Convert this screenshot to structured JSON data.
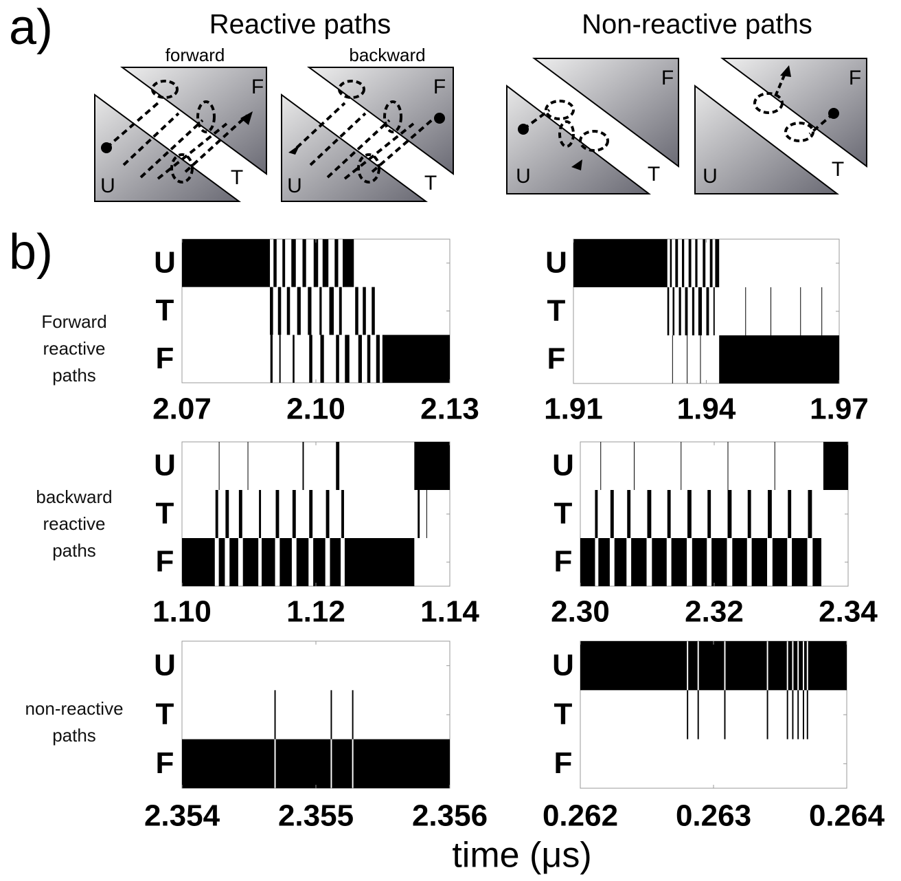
{
  "figure": {
    "panel_a": "a)",
    "panel_b": "b)",
    "title_reactive": "Reactive paths",
    "title_nonreactive": "Non-reactive paths",
    "diagrams": [
      {
        "caption": "forward",
        "labels": [
          "U",
          "T",
          "F"
        ]
      },
      {
        "caption": "backward",
        "labels": [
          "U",
          "T",
          "F"
        ]
      },
      {
        "labels": [
          "U",
          "T",
          "F"
        ]
      },
      {
        "labels": [
          "U",
          "T",
          "F"
        ]
      }
    ],
    "row_labels": [
      "Forward reactive paths",
      "backward reactive paths",
      "non-reactive paths"
    ],
    "xlabel": "time (μs)"
  },
  "chart_data": [
    {
      "type": "state-trajectory",
      "states": [
        "U",
        "T",
        "F"
      ],
      "color": "#000000",
      "xlim": [
        2.07,
        2.13
      ],
      "xticks": [
        2.07,
        {
          "value": 2.1,
          "label": "2.10"
        },
        2.13
      ],
      "occupancy": [
        [
          [
            2.07,
            2.0897
          ],
          [
            2.0905,
            2.0912
          ],
          [
            2.0925,
            2.0931
          ],
          [
            2.0945,
            2.0955
          ],
          [
            2.097,
            2.0978
          ],
          [
            2.0995,
            2.1005
          ],
          [
            2.1015,
            2.1028
          ],
          [
            2.1042,
            2.105
          ],
          [
            2.106,
            2.1085
          ]
        ],
        [
          [
            2.0897,
            2.0904
          ],
          [
            2.0915,
            2.0922
          ],
          [
            2.0935,
            2.0942
          ],
          [
            2.0958,
            2.0966
          ],
          [
            2.0982,
            2.099
          ],
          [
            2.1008,
            2.1013
          ],
          [
            2.103,
            2.104
          ],
          [
            2.1052,
            2.1058
          ],
          [
            2.1088,
            2.1095
          ],
          [
            2.1105,
            2.1112
          ],
          [
            2.1125,
            2.1132
          ]
        ],
        [
          [
            2.0898,
            2.0903
          ],
          [
            2.0918,
            2.0921
          ],
          [
            2.0948,
            2.0952
          ],
          [
            2.0985,
            2.0992
          ],
          [
            2.101,
            2.1018
          ],
          [
            2.1045,
            2.1052
          ],
          [
            2.1065,
            2.1075
          ],
          [
            2.1095,
            2.1103
          ],
          [
            2.1115,
            2.1122
          ],
          [
            2.1135,
            2.1143
          ],
          [
            2.1149,
            2.13
          ]
        ]
      ]
    },
    {
      "type": "state-trajectory",
      "states": [
        "U",
        "T",
        "F"
      ],
      "color": "#000000",
      "xlim": [
        1.91,
        1.97
      ],
      "xticks": [
        1.91,
        1.94,
        1.97
      ],
      "occupancy": [
        [
          [
            1.91,
            1.9312
          ],
          [
            1.9318,
            1.9322
          ],
          [
            1.933,
            1.9336
          ],
          [
            1.9345,
            1.935
          ],
          [
            1.936,
            1.9366
          ],
          [
            1.9375,
            1.938
          ],
          [
            1.9392,
            1.9398
          ],
          [
            1.9408,
            1.9414
          ],
          [
            1.942,
            1.9429
          ]
        ],
        [
          [
            1.9312,
            1.9316
          ],
          [
            1.9324,
            1.9328
          ],
          [
            1.9338,
            1.9343
          ],
          [
            1.9352,
            1.9358
          ],
          [
            1.9368,
            1.9373
          ],
          [
            1.9382,
            1.939
          ],
          [
            1.94,
            1.9406
          ],
          [
            1.9416,
            1.9419
          ],
          [
            1.9488,
            1.9489
          ],
          [
            1.9545,
            1.9546
          ],
          [
            1.9612,
            1.9613
          ],
          [
            1.966,
            1.9661
          ]
        ],
        [
          [
            1.9323,
            1.9324
          ],
          [
            1.9356,
            1.9357
          ],
          [
            1.9386,
            1.9387
          ],
          [
            1.9429,
            1.97
          ]
        ]
      ]
    },
    {
      "type": "state-trajectory",
      "states": [
        "U",
        "T",
        "F"
      ],
      "color": "#000000",
      "xlim": [
        1.1,
        1.14
      ],
      "xticks": [
        {
          "value": 1.1,
          "label": "1.10"
        },
        1.12,
        1.14
      ],
      "occupancy": [
        [
          [
            1.1055,
            1.1056
          ],
          [
            1.1098,
            1.1099
          ],
          [
            1.118,
            1.1182
          ],
          [
            1.123,
            1.1235
          ],
          [
            1.1347,
            1.14
          ]
        ],
        [
          [
            1.105,
            1.1054
          ],
          [
            1.1065,
            1.107
          ],
          [
            1.1085,
            1.109
          ],
          [
            1.1115,
            1.1118
          ],
          [
            1.114,
            1.1145
          ],
          [
            1.1165,
            1.117
          ],
          [
            1.119,
            1.1195
          ],
          [
            1.1215,
            1.122
          ],
          [
            1.1238,
            1.1242
          ],
          [
            1.1352,
            1.1355
          ],
          [
            1.1365,
            1.1366
          ]
        ],
        [
          [
            1.1,
            1.1049
          ],
          [
            1.1055,
            1.1064
          ],
          [
            1.1071,
            1.1084
          ],
          [
            1.1091,
            1.1114
          ],
          [
            1.1119,
            1.1139
          ],
          [
            1.1146,
            1.1164
          ],
          [
            1.1171,
            1.1189
          ],
          [
            1.1196,
            1.1214
          ],
          [
            1.1221,
            1.1237
          ],
          [
            1.1243,
            1.1347
          ]
        ]
      ]
    },
    {
      "type": "state-trajectory",
      "states": [
        "U",
        "T",
        "F"
      ],
      "color": "#000000",
      "xlim": [
        2.3,
        2.34
      ],
      "xticks": [
        {
          "value": 2.3,
          "label": "2.30"
        },
        2.32,
        2.34
      ],
      "occupancy": [
        [
          [
            2.303,
            2.3031
          ],
          [
            2.308,
            2.3081
          ],
          [
            2.315,
            2.3151
          ],
          [
            2.322,
            2.3221
          ],
          [
            2.329,
            2.3291
          ],
          [
            2.3363,
            2.34
          ]
        ],
        [
          [
            2.3022,
            2.3026
          ],
          [
            2.3045,
            2.305
          ],
          [
            2.307,
            2.3075
          ],
          [
            2.31,
            2.3106
          ],
          [
            2.313,
            2.3135
          ],
          [
            2.316,
            2.3166
          ],
          [
            2.319,
            2.3195
          ],
          [
            2.322,
            2.3226
          ],
          [
            2.325,
            2.3255
          ],
          [
            2.328,
            2.3286
          ],
          [
            2.331,
            2.3315
          ],
          [
            2.334,
            2.3346
          ]
        ],
        [
          [
            2.3,
            2.3022
          ],
          [
            2.3027,
            2.3044
          ],
          [
            2.3051,
            2.3069
          ],
          [
            2.3076,
            2.3099
          ],
          [
            2.3107,
            2.3129
          ],
          [
            2.3136,
            2.3159
          ],
          [
            2.3167,
            2.3189
          ],
          [
            2.3196,
            2.3219
          ],
          [
            2.3227,
            2.3249
          ],
          [
            2.3256,
            2.3279
          ],
          [
            2.3287,
            2.3309
          ],
          [
            2.3316,
            2.3339
          ],
          [
            2.3347,
            2.336
          ]
        ]
      ]
    },
    {
      "type": "state-trajectory",
      "states": [
        "U",
        "T",
        "F"
      ],
      "color": "#000000",
      "xlim": [
        2.354,
        2.356
      ],
      "xticks": [
        2.354,
        2.355,
        2.356
      ],
      "occupancy": [
        [],
        [
          [
            2.35469,
            2.3547
          ],
          [
            2.35511,
            2.35512
          ],
          [
            2.35527,
            2.35528
          ]
        ],
        [
          [
            2.354,
            2.35469
          ],
          [
            2.3547,
            2.35511
          ],
          [
            2.35512,
            2.35527
          ],
          [
            2.35528,
            2.356
          ]
        ]
      ]
    },
    {
      "type": "state-trajectory",
      "states": [
        "U",
        "T",
        "F"
      ],
      "color": "#000000",
      "xlim": [
        0.262,
        0.264
      ],
      "xticks": [
        0.262,
        0.263,
        0.264
      ],
      "occupancy": [
        [
          [
            0.262,
            0.2628
          ],
          [
            0.26281,
            0.26288
          ],
          [
            0.26289,
            0.26308
          ],
          [
            0.26309,
            0.2634
          ],
          [
            0.26341,
            0.26355
          ],
          [
            0.26356,
            0.26359
          ],
          [
            0.2636,
            0.26363
          ],
          [
            0.26364,
            0.26367
          ],
          [
            0.26368,
            0.2637
          ],
          [
            0.26371,
            0.264
          ]
        ],
        [
          [
            0.2628,
            0.26281
          ],
          [
            0.26288,
            0.26289
          ],
          [
            0.26308,
            0.26309
          ],
          [
            0.2634,
            0.26341
          ],
          [
            0.26355,
            0.26356
          ],
          [
            0.26359,
            0.2636
          ],
          [
            0.26363,
            0.26364
          ],
          [
            0.26367,
            0.26368
          ],
          [
            0.2637,
            0.26371
          ]
        ],
        []
      ]
    }
  ]
}
